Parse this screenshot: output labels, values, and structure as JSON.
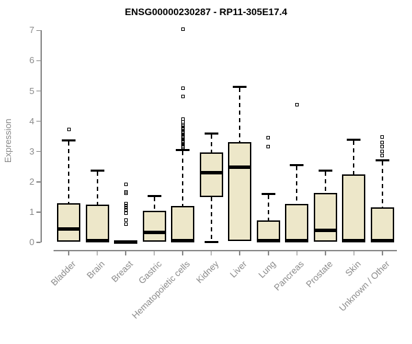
{
  "chart_data": {
    "type": "boxplot",
    "title": "ENSG00000230287 - RP11-305E17.4",
    "ylabel": "Expression",
    "ylim": [
      0,
      7
    ],
    "yticks": [
      0,
      1,
      2,
      3,
      4,
      5,
      6,
      7
    ],
    "grid": false,
    "legend": null,
    "categories": [
      "Bladder",
      "Brain",
      "Breast",
      "Gastric",
      "Hematopoietic cells",
      "Kidney",
      "Liver",
      "Lung",
      "Pancreas",
      "Prostate",
      "Skin",
      "Unknown / Other"
    ],
    "boxes": [
      {
        "label": "Bladder",
        "q1": 0.02,
        "median": 0.45,
        "q3": 1.3,
        "whisker_low": null,
        "whisker_high": 3.38,
        "outliers": [
          3.72
        ]
      },
      {
        "label": "Brain",
        "q1": 0.02,
        "median": 0.05,
        "q3": 1.25,
        "whisker_low": null,
        "whisker_high": 2.37,
        "outliers": []
      },
      {
        "label": "Breast",
        "q1": 0.0,
        "median": 0.02,
        "q3": 0.06,
        "whisker_low": null,
        "whisker_high": null,
        "outliers": [
          0.59,
          0.74,
          0.97,
          1.08,
          1.15,
          1.21,
          1.27,
          1.63,
          1.67,
          1.91
        ]
      },
      {
        "label": "Gastric",
        "q1": 0.02,
        "median": 0.33,
        "q3": 1.05,
        "whisker_low": null,
        "whisker_high": 1.54,
        "outliers": []
      },
      {
        "label": "Hematopoietic cells",
        "q1": 0.02,
        "median": 0.05,
        "q3": 1.2,
        "whisker_low": null,
        "whisker_high": 3.06,
        "outliers": [
          3.1,
          3.14,
          3.18,
          3.22,
          3.26,
          3.3,
          3.34,
          3.38,
          3.42,
          3.46,
          3.5,
          3.54,
          3.58,
          3.62,
          3.66,
          3.72,
          3.78,
          3.84,
          3.9,
          3.98,
          4.08,
          4.82,
          5.1,
          7.05
        ]
      },
      {
        "label": "Kidney",
        "q1": 1.5,
        "median": 2.3,
        "q3": 2.98,
        "whisker_low": 0.02,
        "whisker_high": 3.6,
        "outliers": []
      },
      {
        "label": "Liver",
        "q1": 0.05,
        "median": 2.48,
        "q3": 3.32,
        "whisker_low": null,
        "whisker_high": 5.15,
        "outliers": []
      },
      {
        "label": "Lung",
        "q1": 0.02,
        "median": 0.05,
        "q3": 0.72,
        "whisker_low": null,
        "whisker_high": 1.62,
        "outliers": [
          3.16,
          3.46
        ]
      },
      {
        "label": "Pancreas",
        "q1": 0.02,
        "median": 0.05,
        "q3": 1.28,
        "whisker_low": null,
        "whisker_high": 2.56,
        "outliers": [
          4.55
        ]
      },
      {
        "label": "Prostate",
        "q1": 0.02,
        "median": 0.4,
        "q3": 1.64,
        "whisker_low": null,
        "whisker_high": 2.37,
        "outliers": []
      },
      {
        "label": "Skin",
        "q1": 0.02,
        "median": 0.05,
        "q3": 2.25,
        "whisker_low": null,
        "whisker_high": 3.41,
        "outliers": []
      },
      {
        "label": "Unknown / Other",
        "q1": 0.02,
        "median": 0.05,
        "q3": 1.15,
        "whisker_low": null,
        "whisker_high": 2.73,
        "outliers": [
          2.87,
          3.0,
          3.16,
          3.3,
          3.48
        ]
      }
    ],
    "colors": {
      "box_fill": "#EDE7C9",
      "box_border": "#000000",
      "axis": "#8a8a8a",
      "tick_text": "#8a8a8a",
      "title_text": "#000000"
    }
  }
}
